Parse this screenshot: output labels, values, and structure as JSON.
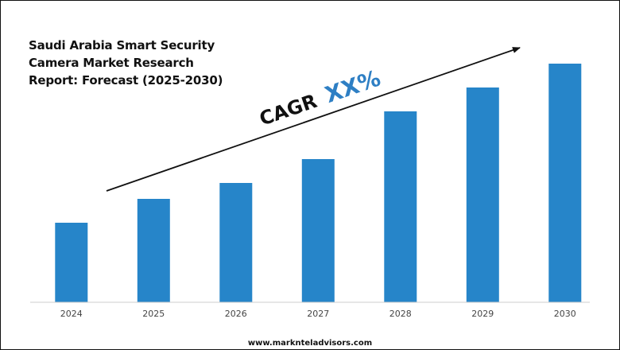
{
  "title_lines": [
    "Saudi Arabia Smart Security",
    "Camera Market Research",
    "Report: Forecast (2025-2030)"
  ],
  "cagr": {
    "prefix": "CAGR",
    "value": "XX%"
  },
  "footer": {
    "website": "www.marknteladvisors.com"
  },
  "colors": {
    "bar": "#2685c9",
    "cagr_value": "#2e7fc4",
    "text": "#111111",
    "axis": "#cccccc"
  },
  "chart_data": {
    "type": "bar",
    "categories": [
      "2024",
      "2025",
      "2026",
      "2027",
      "2028",
      "2029",
      "2030"
    ],
    "values": [
      1.0,
      1.3,
      1.5,
      1.8,
      2.4,
      2.7,
      3.0
    ],
    "title": "Saudi Arabia Smart Security Camera Market Research Report: Forecast (2025-2030)",
    "xlabel": "",
    "ylabel": "",
    "ylim": [
      0,
      3.0
    ],
    "grid": false,
    "legend": "none",
    "annotations": [
      "CAGR XX%"
    ]
  }
}
